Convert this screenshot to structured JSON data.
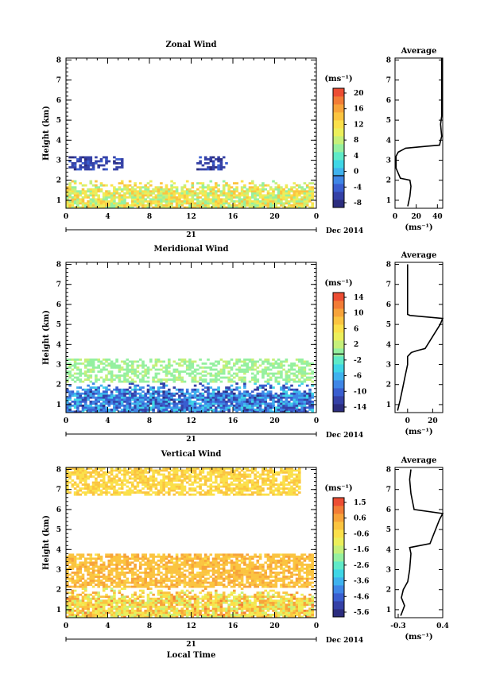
{
  "colors": {
    "scale": [
      "#2c2d7e",
      "#3541a6",
      "#3a5ecf",
      "#3f86e6",
      "#3fb2ee",
      "#3fd6e6",
      "#5feac8",
      "#95f0a0",
      "#c6f07a",
      "#ecef5b",
      "#fbe04a",
      "#fbc440",
      "#f7a33a",
      "#f27c36",
      "#ec4d33"
    ]
  },
  "chart_data": [
    {
      "type": "heatmap",
      "title": "Zonal Wind",
      "ylabel": "Height (km)",
      "xlabel": "",
      "ylim": [
        0.6,
        8.1
      ],
      "xlim": [
        0,
        24
      ],
      "x_ticks": [
        "0",
        "4",
        "8",
        "12",
        "16",
        "20",
        "0"
      ],
      "y_ticks": [
        "1",
        "2",
        "3",
        "4",
        "5",
        "6",
        "7",
        "8"
      ],
      "date_day": "21",
      "date_label": "Dec 2014",
      "colorbar": {
        "unit": "(ms⁻¹)",
        "range": [
          -8,
          22
        ],
        "labels": [
          "20",
          "16",
          "12",
          "8",
          "4",
          "0",
          "-4",
          "-8"
        ],
        "zero_line": 0
      },
      "field": {
        "low": {
          "height_range": [
            0.6,
            2.0
          ],
          "value_range": [
            6,
            16
          ]
        },
        "band": {
          "height_range": [
            2.5,
            3.2
          ],
          "value": -5,
          "time_segments": [
            [
              0.2,
              5.5
            ],
            [
              12.5,
              15.3
            ]
          ]
        }
      },
      "average": {
        "title": "Average",
        "xlabel": "(ms⁻¹)",
        "x_ticks": [
          "0",
          "20",
          "40"
        ],
        "xlim": [
          0,
          45
        ],
        "y_ticks": [
          "1",
          "2",
          "3",
          "4",
          "5",
          "6",
          "7",
          "8"
        ],
        "profile": [
          [
            12,
            0.7
          ],
          [
            14,
            1.2
          ],
          [
            15,
            1.7
          ],
          [
            14,
            2.0
          ],
          [
            5,
            2.1
          ],
          [
            1,
            2.6
          ],
          [
            1,
            3.2
          ],
          [
            3,
            3.4
          ],
          [
            10,
            3.6
          ],
          [
            30,
            3.7
          ],
          [
            42,
            3.75
          ],
          [
            44,
            4.2
          ],
          [
            43,
            4.8
          ],
          [
            44,
            5.2
          ],
          [
            44,
            8.1
          ]
        ]
      }
    },
    {
      "type": "heatmap",
      "title": "Meridional Wind",
      "ylabel": "Height (km)",
      "xlabel": "",
      "ylim": [
        0.6,
        8.1
      ],
      "xlim": [
        0,
        24
      ],
      "x_ticks": [
        "0",
        "4",
        "8",
        "12",
        "16",
        "20",
        "0"
      ],
      "y_ticks": [
        "1",
        "2",
        "3",
        "4",
        "5",
        "6",
        "7",
        "8"
      ],
      "date_day": "21",
      "date_label": "Dec 2014",
      "colorbar": {
        "unit": "(ms⁻¹)",
        "range": [
          -16,
          17
        ],
        "labels": [
          "14",
          "10",
          "6",
          "2",
          "-2",
          "-6",
          "-10",
          "-14"
        ],
        "zero_line": 0
      },
      "field": {
        "low": {
          "height_range": [
            0.6,
            2.1
          ],
          "value_range": [
            -14,
            -4
          ]
        },
        "band": {
          "height_range": [
            2.1,
            3.3
          ],
          "value": 1
        }
      },
      "average": {
        "title": "Average",
        "xlabel": "(ms⁻¹)",
        "x_ticks": [
          "0",
          "20"
        ],
        "xlim": [
          -10,
          28
        ],
        "y_ticks": [
          "1",
          "2",
          "3",
          "4",
          "5",
          "6",
          "7",
          "8"
        ],
        "profile": [
          [
            -8,
            0.7
          ],
          [
            -6,
            1.2
          ],
          [
            -4,
            1.8
          ],
          [
            -2,
            2.4
          ],
          [
            0,
            3.0
          ],
          [
            0,
            3.4
          ],
          [
            3,
            3.6
          ],
          [
            8,
            3.7
          ],
          [
            14,
            3.8
          ],
          [
            18,
            4.2
          ],
          [
            22,
            4.6
          ],
          [
            26,
            5.0
          ],
          [
            28,
            5.3
          ],
          [
            2,
            5.45
          ],
          [
            0,
            5.5
          ],
          [
            0,
            6.5
          ],
          [
            0,
            8.0
          ]
        ]
      }
    },
    {
      "type": "heatmap",
      "title": "Vertical Wind",
      "ylabel": "Height (km)",
      "xlabel": "Local Time",
      "ylim": [
        0.6,
        8.1
      ],
      "xlim": [
        0,
        24
      ],
      "x_ticks": [
        "0",
        "4",
        "8",
        "12",
        "16",
        "20",
        "0"
      ],
      "y_ticks": [
        "1",
        "2",
        "3",
        "4",
        "5",
        "6",
        "7",
        "8"
      ],
      "date_day": "21",
      "date_label": "Dec 2014",
      "colorbar": {
        "unit": "(ms⁻¹)",
        "range": [
          -6.1,
          2.0
        ],
        "labels": [
          "1.5",
          "0.6",
          "-0.6",
          "-1.6",
          "-2.6",
          "-3.6",
          "-4.6",
          "-5.6"
        ],
        "zero_line": null
      },
      "field": {
        "low": {
          "height_range": [
            0.6,
            2.1
          ],
          "value_range": [
            -1.6,
            1.0
          ]
        },
        "mid": {
          "height_range": [
            2.1,
            3.8
          ],
          "value": 0.2
        },
        "high": {
          "height_range": [
            6.6,
            8.0
          ],
          "value": -0.2
        }
      },
      "average": {
        "title": "Average",
        "xlabel": "(ms⁻¹)",
        "x_ticks": [
          "-0.3",
          "0.4"
        ],
        "xlim": [
          -0.35,
          0.4
        ],
        "y_ticks": [
          "1",
          "2",
          "3",
          "4",
          "5",
          "6",
          "7",
          "8"
        ],
        "profile": [
          [
            -0.26,
            0.7
          ],
          [
            -0.2,
            1.2
          ],
          [
            -0.25,
            1.6
          ],
          [
            -0.22,
            2.0
          ],
          [
            -0.15,
            2.4
          ],
          [
            -0.12,
            3.0
          ],
          [
            -0.1,
            3.8
          ],
          [
            -0.12,
            4.1
          ],
          [
            0.2,
            4.3
          ],
          [
            0.35,
            5.5
          ],
          [
            0.4,
            5.8
          ],
          [
            -0.05,
            6.0
          ],
          [
            -0.1,
            6.8
          ],
          [
            -0.12,
            7.5
          ],
          [
            -0.1,
            8.0
          ]
        ]
      }
    }
  ]
}
